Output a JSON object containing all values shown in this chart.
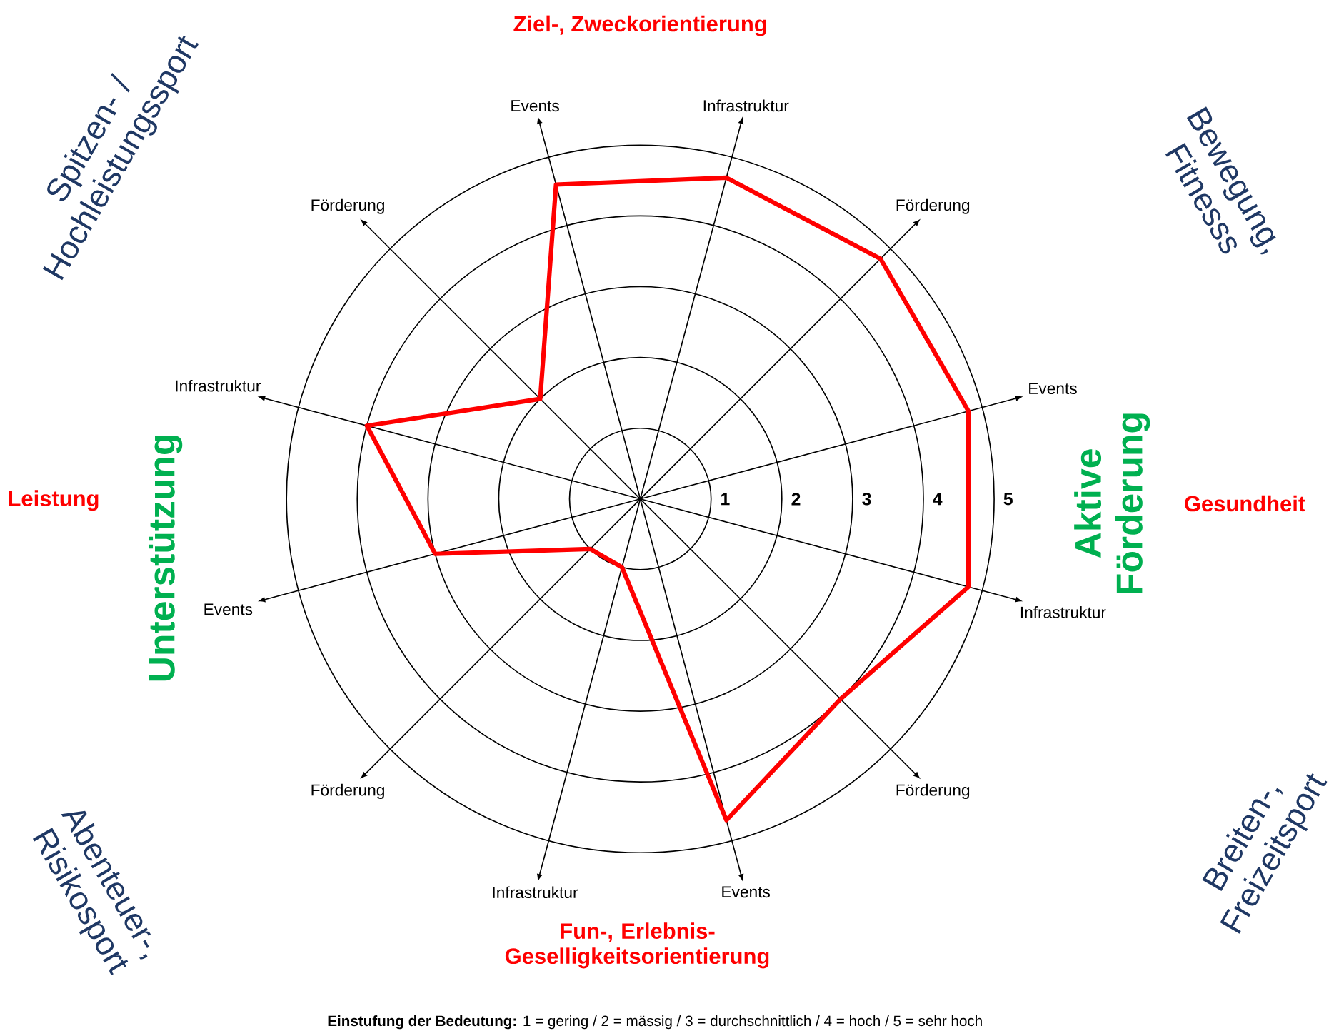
{
  "chart_data": {
    "type": "radar",
    "categories": [
      "Infrastruktur",
      "Förderung",
      "Events",
      "Infrastruktur",
      "Förderung",
      "Events",
      "Infrastruktur",
      "Förderung",
      "Events",
      "Infrastruktur",
      "Förderung",
      "Events"
    ],
    "series": [
      {
        "color": "#ff0000",
        "values": [
          4.7,
          4.8,
          4.8,
          4.8,
          4,
          4.7,
          1,
          1,
          3,
          4,
          2,
          4.6
        ]
      }
    ],
    "ylim": [
      0,
      5
    ],
    "yticks": [
      1,
      2,
      3,
      4,
      5
    ],
    "grid": true,
    "annotations": [
      "Ziel-, Zweckorientierung",
      "Gesundheit",
      "Fun-, Erlebnis- Geselligkeitsorientierung",
      "Leistung",
      "Unterstützung",
      "Aktive Förderung",
      "Spitzen- / Hochleistungssport",
      "Bewegung, Fitnesss",
      "Breiten-, Freizeitsport",
      "Abenteuer-, Risikosport",
      "**Einstufung der Bedeutung:** 1 = gering / 2 = mässig / 3 = durchschnittlich / 4 = hoch / 5 = sehr hoch"
    ]
  }
}
